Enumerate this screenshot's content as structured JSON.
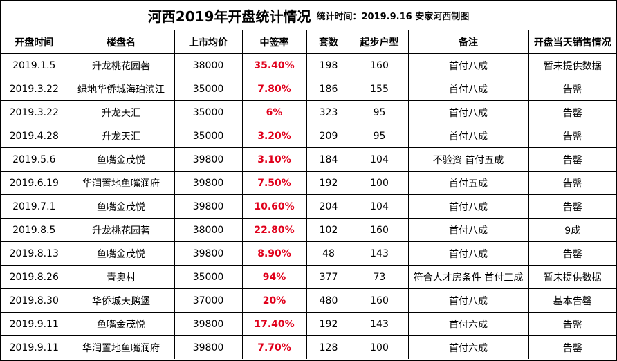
{
  "title": {
    "main": "河西2019年开盘统计情况",
    "sub": "统计时间：2019.9.16 安家河西制图"
  },
  "table": {
    "headers": [
      "开盘时间",
      "楼盘名",
      "上市均价",
      "中签率",
      "套数",
      "起步户型",
      "备注",
      "开盘当天销售情况"
    ],
    "rows": [
      [
        "2019.1.5",
        "升龙桃花园著",
        "38000",
        "35.40%",
        "198",
        "160",
        "首付八成",
        "暂未提供数据"
      ],
      [
        "2019.3.22",
        "绿地华侨城海珀滨江",
        "35000",
        "7.80%",
        "186",
        "155",
        "首付八成",
        "告罄"
      ],
      [
        "2019.3.22",
        "升龙天汇",
        "35000",
        "6%",
        "323",
        "95",
        "首付八成",
        "告罄"
      ],
      [
        "2019.4.28",
        "升龙天汇",
        "35000",
        "3.20%",
        "209",
        "95",
        "首付八成",
        "告罄"
      ],
      [
        "2019.5.6",
        "鱼嘴金茂悦",
        "39800",
        "3.10%",
        "184",
        "104",
        "不验资 首付五成",
        "告罄"
      ],
      [
        "2019.6.19",
        "华润置地鱼嘴润府",
        "39800",
        "7.50%",
        "192",
        "100",
        "首付五成",
        "告罄"
      ],
      [
        "2019.7.1",
        "鱼嘴金茂悦",
        "39800",
        "10.60%",
        "204",
        "104",
        "首付八成",
        "告罄"
      ],
      [
        "2019.8.5",
        "升龙桃花园著",
        "38000",
        "22.80%",
        "102",
        "160",
        "首付八成",
        "9成"
      ],
      [
        "2019.8.13",
        "鱼嘴金茂悦",
        "39800",
        "8.90%",
        "48",
        "143",
        "首付八成",
        "告罄"
      ],
      [
        "2019.8.26",
        "青奥村",
        "35000",
        "94%",
        "377",
        "73",
        "符合人才房条件 首付三成",
        "暂未提供数据"
      ],
      [
        "2019.8.30",
        "华侨城天鹅堡",
        "37000",
        "20%",
        "480",
        "160",
        "首付八成",
        "基本告罄"
      ],
      [
        "2019.9.11",
        "鱼嘴金茂悦",
        "39800",
        "17.40%",
        "192",
        "143",
        "首付六成",
        "告罄"
      ],
      [
        "2019.9.11",
        "华润置地鱼嘴润府",
        "39800",
        "7.70%",
        "128",
        "100",
        "首付六成",
        "告罄"
      ]
    ]
  },
  "colors": {
    "rate_text": "#e0001b",
    "border": "#000000"
  }
}
